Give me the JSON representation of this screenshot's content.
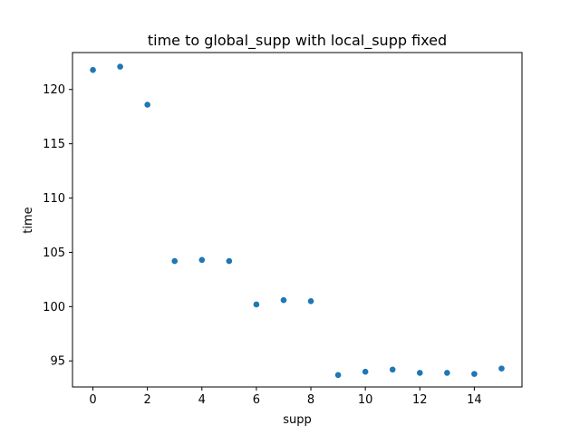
{
  "chart_data": {
    "type": "scatter",
    "title": "time to global_supp with local_supp fixed",
    "xlabel": "supp",
    "ylabel": "time",
    "xlim": [
      -0.75,
      15.75
    ],
    "ylim": [
      92.6,
      123.4
    ],
    "xticks": [
      0,
      2,
      4,
      6,
      8,
      10,
      12,
      14
    ],
    "yticks": [
      95,
      100,
      105,
      110,
      115,
      120
    ],
    "grid": false,
    "marker_color": "#1f77b4",
    "x": [
      0,
      1,
      2,
      3,
      4,
      5,
      6,
      7,
      8,
      9,
      10,
      11,
      12,
      13,
      14,
      15
    ],
    "y": [
      121.8,
      122.1,
      118.6,
      104.2,
      104.3,
      104.2,
      100.2,
      100.6,
      100.5,
      93.7,
      94.0,
      94.2,
      93.9,
      93.9,
      93.8,
      94.3
    ]
  }
}
